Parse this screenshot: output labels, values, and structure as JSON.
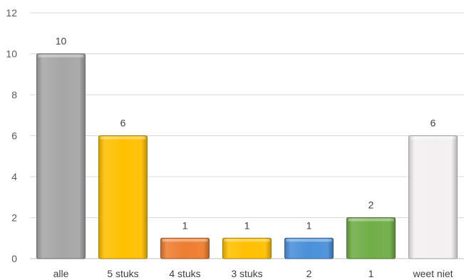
{
  "chart_data": {
    "type": "bar",
    "title": "",
    "xlabel": "",
    "ylabel": "",
    "ylim": [
      0,
      12
    ],
    "yticks": [
      0,
      2,
      4,
      6,
      8,
      10,
      12
    ],
    "grid": true,
    "legend": "none",
    "categories": [
      "alle",
      "5 stuks",
      "4 stuks",
      "3 stuks",
      "2",
      "1",
      "weet niet"
    ],
    "values": [
      10,
      6,
      1,
      1,
      1,
      2,
      6
    ],
    "colors": [
      "#a6a6a6",
      "#ffc000",
      "#ed7d31",
      "#ffc000",
      "#4a90d9",
      "#70ad47",
      "#f2f0f0"
    ],
    "data_labels": [
      "10",
      "6",
      "1",
      "1",
      "1",
      "2",
      "6"
    ]
  }
}
